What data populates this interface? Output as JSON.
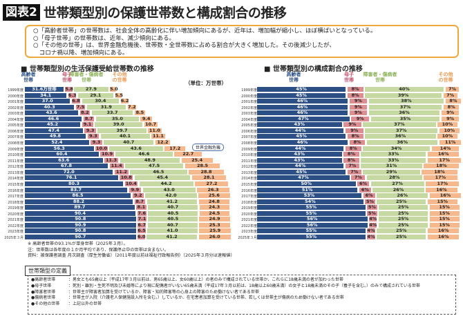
{
  "header": {
    "badge": "図表2",
    "title": "世帯類型別の保護世帯数と構成割合の推移"
  },
  "summary": [
    "○「高齢者世帯」の世帯数は、社会全体の高齢化に伴い増加傾向にあるが、近年は、増加幅が縮小し、ほぼ横ばいとなっている。",
    "○「母子世帯」の世帯数は、近年、減少傾向にある。",
    "○「その他の世帯」は、世界金融危機後、世帯数・全世帯数に占める割合が大きく増加した。その後減少したが、",
    "　コロナ禍以降、増加傾向にある。"
  ],
  "colors": {
    "elderly": "#2c4f86",
    "single_mother": "#dc8e92",
    "disabled_sick": "#c6d9a2",
    "other": "#f6b98d"
  },
  "chart_data": [
    {
      "type": "bar",
      "stacked": true,
      "orientation": "horizontal",
      "title": "■ 世帯類型別の生活保護受給世帯数の推移",
      "unit": "（単位：万世帯）",
      "first_label_suffix": "万世帯",
      "annotation": "世界金融危機",
      "annotation_category": "2009年度",
      "categories": [
        "1999年度",
        "2000年度",
        "2001年度",
        "2002年度",
        "2003年度",
        "2004年度",
        "2005年度",
        "2006年度",
        "2007年度",
        "2008年度",
        "2009年度",
        "2010年度",
        "2011年度",
        "2012年度",
        "2013年度",
        "2014年度",
        "2015年度",
        "2016年度",
        "2017年度",
        "2018年度",
        "2019年度",
        "2020年度",
        "2021年度",
        "2022年度",
        "2023年度",
        "2025年３月"
      ],
      "series": [
        {
          "name": "高齢者世帯",
          "values": [
            31.6,
            34.1,
            37.0,
            40.3,
            43.6,
            46.6,
            45.2,
            47.4,
            49.8,
            52.4,
            56.3,
            60.4,
            63.6,
            67.8,
            72.0,
            76.1,
            80.3,
            83.7,
            86.5,
            88.2,
            89.7,
            90.4,
            90.8,
            90.9,
            90.8,
            90.7
          ]
        },
        {
          "name": "母子世帯",
          "values": [
            5.8,
            6.3,
            6.8,
            7.5,
            8.2,
            8.7,
            9.1,
            9.3,
            9.3,
            9.3,
            10.0,
            10.9,
            11.3,
            11.4,
            11.2,
            10.8,
            10.4,
            9.9,
            9.2,
            8.7,
            8.1,
            7.6,
            7.1,
            6.7,
            6.5,
            6.0
          ]
        },
        {
          "name": "障害者・傷病者世帯",
          "values": [
            27.9,
            29.1,
            30.4,
            31.9,
            33.7,
            35.0,
            39.0,
            39.7,
            40.1,
            40.7,
            43.6,
            46.6,
            48.9,
            47.5,
            46.5,
            45.4,
            44.2,
            43.0,
            42.0,
            41.2,
            40.7,
            40.5,
            40.5,
            40.7,
            41.0,
            41.2
          ]
        },
        {
          "name": "その他の世帯",
          "values": [
            5.0,
            5.5,
            6.2,
            7.2,
            8.5,
            9.4,
            10.7,
            11.0,
            11.1,
            12.2,
            17.2,
            22.7,
            25.4,
            28.5,
            28.8,
            28.1,
            27.2,
            26.3,
            25.6,
            24.8,
            24.3,
            24.5,
            24.9,
            25.3,
            25.9,
            26.0
          ]
        }
      ]
    },
    {
      "type": "bar",
      "stacked": true,
      "orientation": "horizontal",
      "title": "■ 世帯類型別の構成割合の推移",
      "unit_suffix": "%",
      "categories": [
        "1999年度",
        "2000年度",
        "2001年度",
        "2002年度",
        "2003年度",
        "2004年度",
        "2005年度",
        "2006年度",
        "2007年度",
        "2008年度",
        "2009年度",
        "2010年度",
        "2011年度",
        "2012年度",
        "2013年度",
        "2014年度",
        "2015年度",
        "2016年度",
        "2017年度",
        "2018年度",
        "2019年度",
        "2020年度",
        "2021年度",
        "2022年度",
        "2023年度",
        "2025年３月"
      ],
      "series": [
        {
          "name": "高齢者世帯",
          "values": [
            45,
            45,
            46,
            46,
            46,
            47,
            43,
            44,
            45,
            46,
            44,
            43,
            43,
            44,
            45,
            47,
            50,
            51,
            53,
            54,
            55,
            55,
            56,
            56,
            55,
            55
          ]
        },
        {
          "name": "母子世帯",
          "values": [
            8,
            8,
            9,
            9,
            9,
            9,
            9,
            9,
            8,
            8,
            8,
            8,
            8,
            7,
            7,
            7,
            6,
            6,
            6,
            5,
            5,
            5,
            4,
            4,
            4,
            4
          ]
        },
        {
          "name": "障害者・傷病者世帯",
          "values": [
            40,
            39,
            38,
            37,
            36,
            35,
            37,
            37,
            36,
            36,
            34,
            33,
            33,
            31,
            29,
            28,
            27,
            26,
            26,
            25,
            25,
            25,
            25,
            25,
            25,
            25
          ]
        },
        {
          "name": "その他の世帯",
          "values": [
            7,
            7,
            8,
            8,
            9,
            9,
            10,
            10,
            10,
            11,
            14,
            16,
            17,
            18,
            18,
            17,
            17,
            16,
            16,
            15,
            15,
            15,
            15,
            15,
            16,
            16
          ]
        }
      ]
    }
  ],
  "headers": {
    "elderly": "高齢者\n世帯",
    "single_mother": "母子\n世帯",
    "disabled_sick": "障害者・傷病者\n世帯",
    "other": "その他\nの世帯"
  },
  "notes": [
    "※ 高齢者世帯の93.1%が単身世帯（2025年３月）。",
    "注：世帯数は各年度の１か月平均であり、保護停止中の世帯は含まない。",
    "資料：被保護者調査 月次調査（厚生労働省）（2011年度以前は福祉行政報告例）（2025年３月分は速報値）"
  ],
  "definitions": {
    "tab": "世帯類型の定義",
    "items": [
      {
        "k": "●高齢者世帯",
        "v": "：男女とも65歳以上（平成17年３月以前は、男65歳以上、女60歳以上）の者のみで構成されている世帯か、これらに18歳未満の者が加わった世帯"
      },
      {
        "k": "●母子世帯",
        "v": "：死別・離別・生死不明及び未婚等により現に配偶者がいない65歳未満（平成17年３月以前は、18歳以上60歳未満）の女子と18歳未満のその子（養子を含む。）のみで構成されている世帯"
      },
      {
        "k": "●障害者世帯",
        "v": "：世帯主が障害者加算を受けているか、障害・知的障害等の心身上の障害のため働けない者である世帯"
      },
      {
        "k": "●傷病者世帯",
        "v": "：世帯主が入院（介護老人保健施設入所を含む。）しているか、在宅患者加算を受けている世帯、若しくは世帯主が傷病のため働けない者である世帯"
      },
      {
        "k": "●その他の世帯",
        "v": "：上記以外の世帯"
      }
    ]
  }
}
